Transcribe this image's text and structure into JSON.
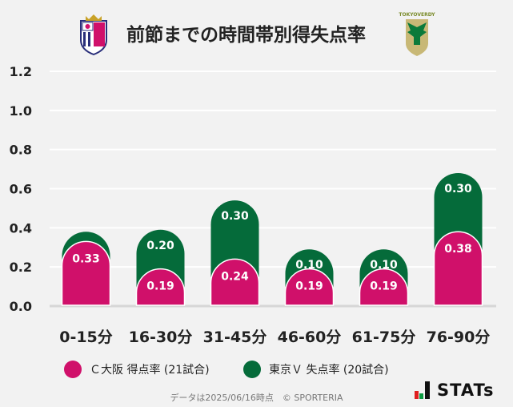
{
  "title": "前節までの時間帯別得失点率",
  "logos": {
    "home": "Cerezo Osaka crest",
    "away": "TOKYO VERDY"
  },
  "colors": {
    "home": "#d0106a",
    "away": "#056b3a",
    "background": "#f2f2f2",
    "grid": "#ffffff"
  },
  "chart_data": {
    "type": "bar",
    "stacked": true,
    "title": "前節までの時間帯別得失点率",
    "categories": [
      "0-15分",
      "16-30分",
      "31-45分",
      "46-60分",
      "61-75分",
      "76-90分"
    ],
    "series": [
      {
        "name": "Ｃ大阪 得点率 (21試合)",
        "values": [
          0.33,
          0.19,
          0.24,
          0.19,
          0.19,
          0.38
        ],
        "labels": [
          "0.33",
          "0.19",
          "0.24",
          "0.19",
          "0.19",
          "0.38"
        ]
      },
      {
        "name": "東京Ｖ 失点率 (20試合)",
        "values": [
          0.05,
          0.2,
          0.3,
          0.1,
          0.1,
          0.3
        ],
        "labels": [
          "",
          "0.20",
          "0.30",
          "0.10",
          "0.10",
          "0.30"
        ]
      }
    ],
    "ylim": [
      0,
      1.2
    ],
    "yticks": [
      "0.0",
      "0.2",
      "0.4",
      "0.6",
      "0.8",
      "1.0",
      "1.2"
    ],
    "grid": true,
    "legend": "bottom"
  },
  "footer": "データは2025/06/16時点　© SPORTERIA",
  "brand": "STATs"
}
